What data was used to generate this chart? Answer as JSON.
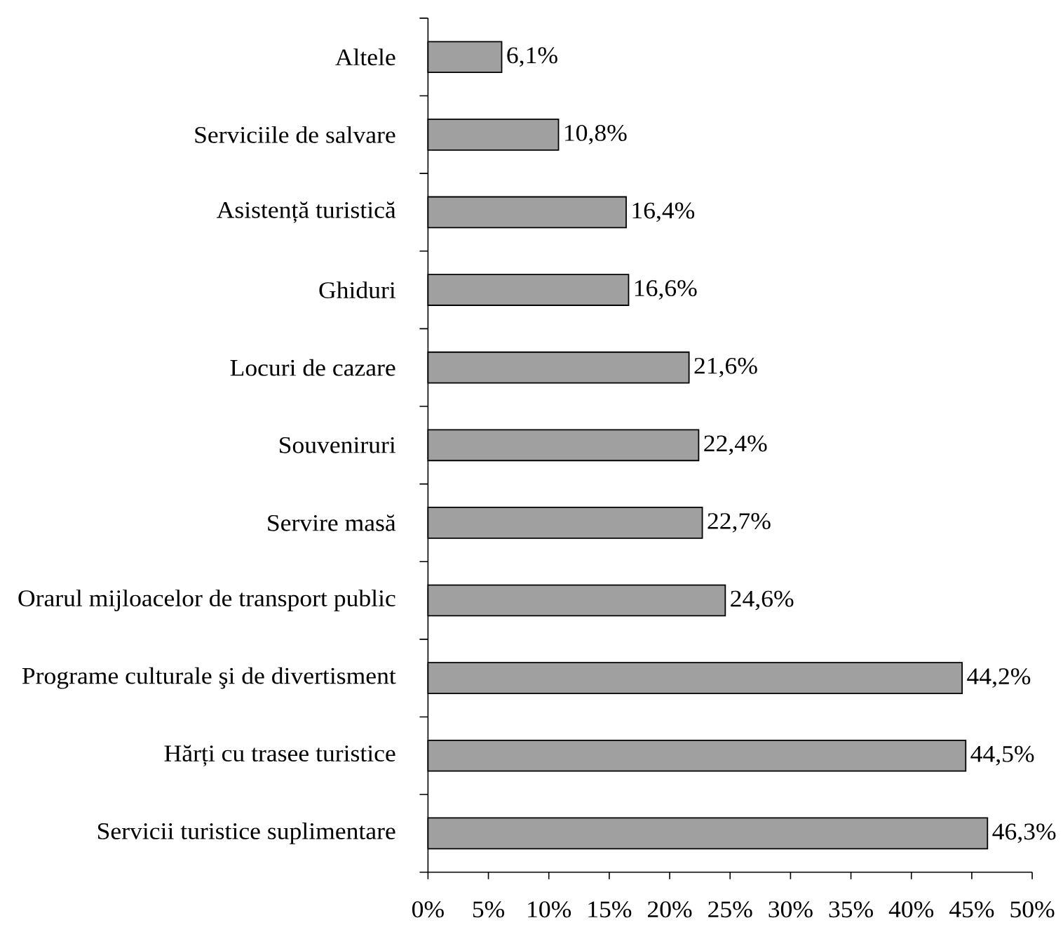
{
  "chart_data": {
    "type": "bar",
    "orientation": "horizontal",
    "categories": [
      "Altele",
      "Serviciile de salvare",
      "Asistență turistică",
      "Ghiduri",
      "Locuri de cazare",
      "Souveniruri",
      "Servire masă",
      "Orarul mijloacelor de transport public",
      "Programe culturale şi de divertisment",
      "Hărți cu trasee turistice",
      "Servicii turistice suplimentare"
    ],
    "values": [
      6.1,
      10.8,
      16.4,
      16.6,
      21.6,
      22.4,
      22.7,
      24.6,
      44.2,
      44.5,
      46.3
    ],
    "color": "#a0a0a0",
    "value_labels": [
      "6,1%",
      "10,8%",
      "16,4%",
      "16,6%",
      "21,6%",
      "22,4%",
      "22,7%",
      "24,6%",
      "44,2%",
      "44,5%",
      "46,3%"
    ],
    "xlim": [
      0,
      50
    ],
    "xticks": [
      {
        "value": 0,
        "label": "0%"
      },
      {
        "value": 5,
        "label": "5%"
      },
      {
        "value": 10,
        "label": "10%"
      },
      {
        "value": 15,
        "label": "15%"
      },
      {
        "value": 20,
        "label": "20%"
      },
      {
        "value": 25,
        "label": "25%"
      },
      {
        "value": 30,
        "label": "30%"
      },
      {
        "value": 35,
        "label": "35%"
      },
      {
        "value": 40,
        "label": "40%"
      },
      {
        "value": 45,
        "label": "45%"
      },
      {
        "value": 50,
        "label": "50%"
      }
    ]
  }
}
